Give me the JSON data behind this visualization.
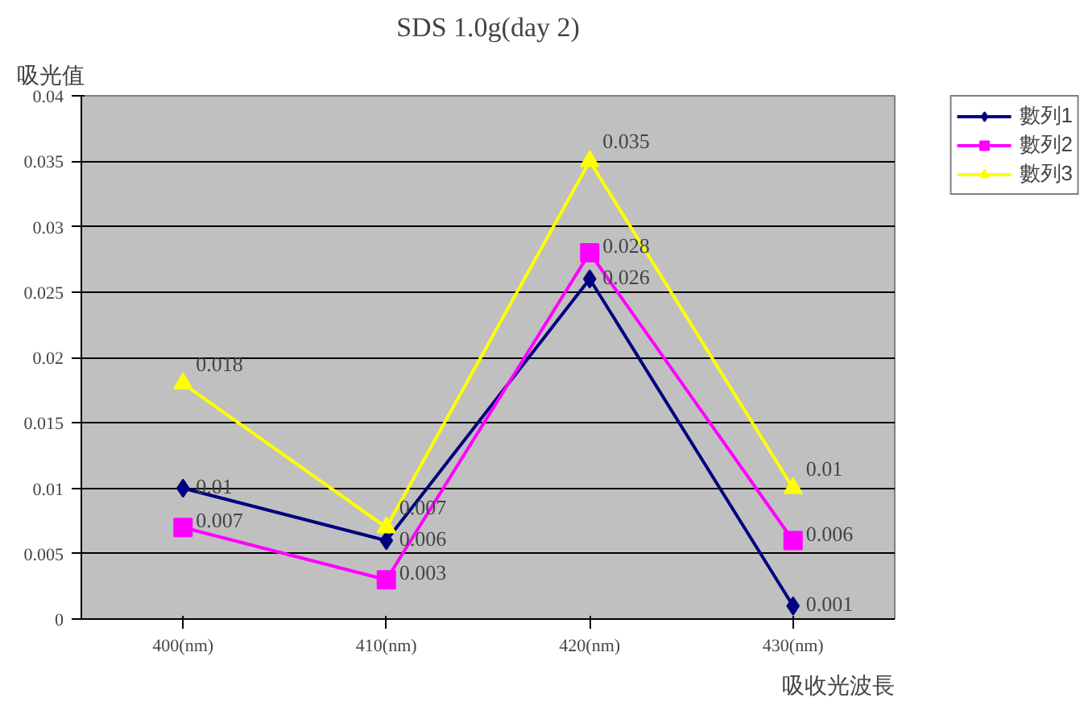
{
  "chart_data": {
    "type": "line",
    "title": "SDS 1.0g(day 2)",
    "xlabel": "吸收光波長",
    "ylabel": "吸光值",
    "categories": [
      "400(nm)",
      "410(nm)",
      "420(nm)",
      "430(nm)"
    ],
    "series": [
      {
        "name": "數列1",
        "color": "#000080",
        "marker": "diamond",
        "values": [
          0.01,
          0.006,
          0.026,
          0.001
        ]
      },
      {
        "name": "數列2",
        "color": "#ff00ff",
        "marker": "square",
        "values": [
          0.007,
          0.003,
          0.028,
          0.006
        ]
      },
      {
        "name": "數列3",
        "color": "#ffff00",
        "marker": "triangle",
        "values": [
          0.018,
          0.007,
          0.035,
          0.01
        ]
      }
    ],
    "ylim": [
      0,
      0.04
    ],
    "yticks": [
      0,
      0.005,
      0.01,
      0.015,
      0.02,
      0.025,
      0.03,
      0.035,
      0.04
    ],
    "grid": "y",
    "legend": "top right",
    "data_labels": true,
    "line_style": "solid"
  }
}
